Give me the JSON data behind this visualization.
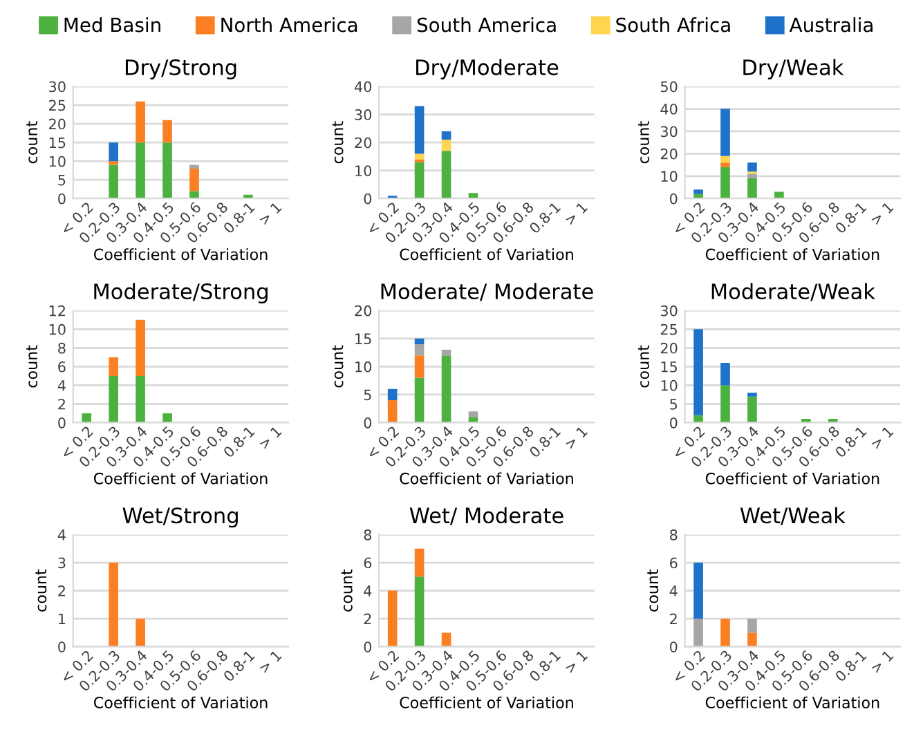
{
  "chart_data": [
    {
      "type": "bar",
      "stacked": true,
      "title": "Dry/Strong",
      "xlabel": "Coefficient of Variation",
      "ylabel": "count",
      "legend": "top",
      "grid": "y",
      "ylim": [
        0,
        30
      ],
      "yticks": [
        0,
        5,
        10,
        15,
        20,
        25,
        30
      ],
      "categories": [
        "< 0.2",
        "0.2-0.3",
        "0.3-0.4",
        "0.4-0.5",
        "0.5-0.6",
        "0.6-0.8",
        "0.8-1",
        "> 1"
      ],
      "series": [
        {
          "name": "Med Basin",
          "color": "#4cb13f",
          "values": [
            0,
            9,
            15,
            15,
            2,
            0,
            1,
            0
          ]
        },
        {
          "name": "North America",
          "color": "#fd7f23",
          "values": [
            0,
            1,
            11,
            6,
            6,
            0,
            0,
            0
          ]
        },
        {
          "name": "South America",
          "color": "#a6a6a6",
          "values": [
            0,
            0,
            0,
            0,
            1,
            0,
            0,
            0
          ]
        },
        {
          "name": "South Africa",
          "color": "#ffd54f",
          "values": [
            0,
            0,
            0,
            0,
            0,
            0,
            0,
            0
          ]
        },
        {
          "name": "Australia",
          "color": "#1f72c9",
          "values": [
            0,
            5,
            0,
            0,
            0,
            0,
            0,
            0
          ]
        }
      ]
    },
    {
      "type": "bar",
      "stacked": true,
      "title": "Dry/Moderate",
      "xlabel": "Coefficient of Variation",
      "ylabel": "count",
      "grid": "y",
      "ylim": [
        0,
        40
      ],
      "yticks": [
        0,
        10,
        20,
        30,
        40
      ],
      "categories": [
        "< 0.2",
        "0.2-0.3",
        "0.3-0.4",
        "0.4-0.5",
        "0.5-0.6",
        "0.6-0.8",
        "0.8-1",
        "> 1"
      ],
      "series": [
        {
          "color": "#4cb13f",
          "values": [
            0,
            13,
            17,
            2,
            0,
            0,
            0,
            0
          ]
        },
        {
          "color": "#fd7f23",
          "values": [
            0,
            1,
            0,
            0,
            0,
            0,
            0,
            0
          ]
        },
        {
          "color": "#a6a6a6",
          "values": [
            0,
            0,
            0,
            0,
            0,
            0,
            0,
            0
          ]
        },
        {
          "color": "#ffd54f",
          "values": [
            0,
            2,
            4,
            0,
            0,
            0,
            0,
            0
          ]
        },
        {
          "color": "#1f72c9",
          "values": [
            1,
            17,
            3,
            0,
            0,
            0,
            0,
            0
          ]
        }
      ]
    },
    {
      "type": "bar",
      "stacked": true,
      "title": "Dry/Weak",
      "xlabel": "Coefficient of Variation",
      "ylabel": "count",
      "grid": "y",
      "ylim": [
        0,
        50
      ],
      "yticks": [
        0,
        10,
        20,
        30,
        40,
        50
      ],
      "categories": [
        "< 0.2",
        "0.2-0.3",
        "0.3-0.4",
        "0.4-0.5",
        "0.5-0.6",
        "0.6-0.8",
        "0.8-1",
        "> 1"
      ],
      "series": [
        {
          "color": "#4cb13f",
          "values": [
            2,
            14,
            9,
            3,
            0,
            0,
            0,
            0
          ]
        },
        {
          "color": "#fd7f23",
          "values": [
            0,
            2,
            0,
            0,
            0,
            0,
            0,
            0
          ]
        },
        {
          "color": "#a6a6a6",
          "values": [
            0,
            0,
            2,
            0,
            0,
            0,
            0,
            0
          ]
        },
        {
          "color": "#ffd54f",
          "values": [
            0,
            3,
            1,
            0,
            0,
            0,
            0,
            0
          ]
        },
        {
          "color": "#1f72c9",
          "values": [
            2,
            21,
            4,
            0,
            0,
            0,
            0,
            0
          ]
        }
      ]
    },
    {
      "type": "bar",
      "stacked": true,
      "title": "Moderate/Strong",
      "xlabel": "Coefficient of Variation",
      "ylabel": "count",
      "grid": "y",
      "ylim": [
        0,
        12
      ],
      "yticks": [
        0,
        2,
        4,
        6,
        8,
        10,
        12
      ],
      "categories": [
        "< 0.2",
        "0.2-0.3",
        "0.3-0.4",
        "0.4-0.5",
        "0.5-0.6",
        "0.6-0.8",
        "0.8-1",
        "> 1"
      ],
      "series": [
        {
          "color": "#4cb13f",
          "values": [
            1,
            5,
            5,
            1,
            0,
            0,
            0,
            0
          ]
        },
        {
          "color": "#fd7f23",
          "values": [
            0,
            2,
            6,
            0,
            0,
            0,
            0,
            0
          ]
        },
        {
          "color": "#a6a6a6",
          "values": [
            0,
            0,
            0,
            0,
            0,
            0,
            0,
            0
          ]
        },
        {
          "color": "#ffd54f",
          "values": [
            0,
            0,
            0,
            0,
            0,
            0,
            0,
            0
          ]
        },
        {
          "color": "#1f72c9",
          "values": [
            0,
            0,
            0,
            0,
            0,
            0,
            0,
            0
          ]
        }
      ]
    },
    {
      "type": "bar",
      "stacked": true,
      "title": "Moderate/ Moderate",
      "xlabel": "Coefficient of Variation",
      "ylabel": "count",
      "grid": "y",
      "ylim": [
        0,
        20
      ],
      "yticks": [
        0,
        5,
        10,
        15,
        20
      ],
      "categories": [
        "< 0.2",
        "0.2-0.3",
        "0.3-0.4",
        "0.4-0.5",
        "0.5-0.6",
        "0.6-0.8",
        "0.8-1",
        "> 1"
      ],
      "series": [
        {
          "color": "#4cb13f",
          "values": [
            0,
            8,
            12,
            1,
            0,
            0,
            0,
            0
          ]
        },
        {
          "color": "#fd7f23",
          "values": [
            4,
            4,
            0,
            0,
            0,
            0,
            0,
            0
          ]
        },
        {
          "color": "#a6a6a6",
          "values": [
            0,
            2,
            1,
            1,
            0,
            0,
            0,
            0
          ]
        },
        {
          "color": "#ffd54f",
          "values": [
            0,
            0,
            0,
            0,
            0,
            0,
            0,
            0
          ]
        },
        {
          "color": "#1f72c9",
          "values": [
            2,
            1,
            0,
            0,
            0,
            0,
            0,
            0
          ]
        }
      ]
    },
    {
      "type": "bar",
      "stacked": true,
      "title": "Moderate/Weak",
      "xlabel": "Coefficient of Variation",
      "ylabel": "count",
      "grid": "y",
      "ylim": [
        0,
        30
      ],
      "yticks": [
        0,
        5,
        10,
        15,
        20,
        25,
        30
      ],
      "categories": [
        "< 0.2",
        "0.2-0.3",
        "0.3-0.4",
        "0.4-0.5",
        "0.5-0.6",
        "0.6-0.8",
        "0.8-1",
        "> 1"
      ],
      "series": [
        {
          "color": "#4cb13f",
          "values": [
            2,
            10,
            7,
            0,
            1,
            1,
            0,
            0
          ]
        },
        {
          "color": "#fd7f23",
          "values": [
            0,
            0,
            0,
            0,
            0,
            0,
            0,
            0
          ]
        },
        {
          "color": "#a6a6a6",
          "values": [
            0,
            0,
            0,
            0,
            0,
            0,
            0,
            0
          ]
        },
        {
          "color": "#ffd54f",
          "values": [
            0,
            0,
            0,
            0,
            0,
            0,
            0,
            0
          ]
        },
        {
          "color": "#1f72c9",
          "values": [
            23,
            6,
            1,
            0,
            0,
            0,
            0,
            0
          ]
        }
      ]
    },
    {
      "type": "bar",
      "stacked": true,
      "title": "Wet/Strong",
      "xlabel": "Coefficient of Variation",
      "ylabel": "count",
      "grid": "y",
      "ylim": [
        0,
        4
      ],
      "yticks": [
        0,
        1,
        2,
        3,
        4
      ],
      "categories": [
        "< 0.2",
        "0.2-0.3",
        "0.3-0.4",
        "0.4-0.5",
        "0.5-0.6",
        "0.6-0.8",
        "0.8-1",
        "> 1"
      ],
      "series": [
        {
          "color": "#4cb13f",
          "values": [
            0,
            0,
            0,
            0,
            0,
            0,
            0,
            0
          ]
        },
        {
          "color": "#fd7f23",
          "values": [
            0,
            3,
            1,
            0,
            0,
            0,
            0,
            0
          ]
        },
        {
          "color": "#a6a6a6",
          "values": [
            0,
            0,
            0,
            0,
            0,
            0,
            0,
            0
          ]
        },
        {
          "color": "#ffd54f",
          "values": [
            0,
            0,
            0,
            0,
            0,
            0,
            0,
            0
          ]
        },
        {
          "color": "#1f72c9",
          "values": [
            0,
            0,
            0,
            0,
            0,
            0,
            0,
            0
          ]
        }
      ]
    },
    {
      "type": "bar",
      "stacked": true,
      "title": "Wet/ Moderate",
      "xlabel": "Coefficient of Variation",
      "ylabel": "count",
      "grid": "y",
      "ylim": [
        0,
        8
      ],
      "yticks": [
        0,
        2,
        4,
        6,
        8
      ],
      "categories": [
        "< 0.2",
        "0.2-0.3",
        "0.3-0.4",
        "0.4-0.5",
        "0.5-0.6",
        "0.6-0.8",
        "0.8-1",
        "> 1"
      ],
      "series": [
        {
          "color": "#4cb13f",
          "values": [
            0,
            5,
            0,
            0,
            0,
            0,
            0,
            0
          ]
        },
        {
          "color": "#fd7f23",
          "values": [
            4,
            2,
            1,
            0,
            0,
            0,
            0,
            0
          ]
        },
        {
          "color": "#a6a6a6",
          "values": [
            0,
            0,
            0,
            0,
            0,
            0,
            0,
            0
          ]
        },
        {
          "color": "#ffd54f",
          "values": [
            0,
            0,
            0,
            0,
            0,
            0,
            0,
            0
          ]
        },
        {
          "color": "#1f72c9",
          "values": [
            0,
            0,
            0,
            0,
            0,
            0,
            0,
            0
          ]
        }
      ]
    },
    {
      "type": "bar",
      "stacked": true,
      "title": "Wet/Weak",
      "xlabel": "Coefficient of Variation",
      "ylabel": "count",
      "grid": "y",
      "ylim": [
        0,
        8
      ],
      "yticks": [
        0,
        2,
        4,
        6,
        8
      ],
      "categories": [
        "< 0.2",
        "0.2-0.3",
        "0.3-0.4",
        "0.4-0.5",
        "0.5-0.6",
        "0.6-0.8",
        "0.8-1",
        "> 1"
      ],
      "series": [
        {
          "color": "#4cb13f",
          "values": [
            0,
            0,
            0,
            0,
            0,
            0,
            0,
            0
          ]
        },
        {
          "color": "#fd7f23",
          "values": [
            0,
            2,
            1,
            0,
            0,
            0,
            0,
            0
          ]
        },
        {
          "color": "#a6a6a6",
          "values": [
            2,
            0,
            1,
            0,
            0,
            0,
            0,
            0
          ]
        },
        {
          "color": "#ffd54f",
          "values": [
            0,
            0,
            0,
            0,
            0,
            0,
            0,
            0
          ]
        },
        {
          "color": "#1f72c9",
          "values": [
            4,
            0,
            0,
            0,
            0,
            0,
            0,
            0
          ]
        }
      ]
    }
  ]
}
